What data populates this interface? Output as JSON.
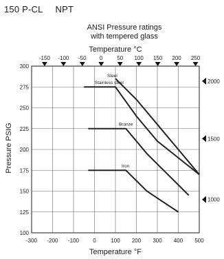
{
  "header": {
    "model": "150 P-CL",
    "connection": "NPT"
  },
  "chart_data": {
    "type": "line",
    "title": "ANSI Pressure ratings",
    "subtitle": "with tempered glass",
    "xlabel": "Temperature °F",
    "x2label": "Temperature °C",
    "ylabel": "Pressure PSIG",
    "xlim": [
      -300,
      500
    ],
    "ylim": [
      100,
      300
    ],
    "x_ticks": [
      -300,
      -200,
      -100,
      0,
      100,
      200,
      300,
      400,
      500
    ],
    "x_tick_labels": [
      "-300",
      "-200",
      "-100",
      "0",
      "100",
      "200",
      "300",
      "400",
      "500"
    ],
    "y_ticks": [
      100,
      125,
      150,
      175,
      200,
      225,
      250,
      275,
      300
    ],
    "y_tick_labels": [
      "100",
      "125",
      "150",
      "175",
      "200",
      "225",
      "250",
      "275",
      "300"
    ],
    "x2_ticks_c": [
      -150,
      -100,
      -50,
      0,
      50,
      100,
      150,
      200,
      250
    ],
    "x2_tick_labels": [
      "-150",
      "-100",
      "-50",
      "0",
      "50",
      "100",
      "150",
      "200",
      "250"
    ],
    "right_marks": [
      {
        "label": "2000",
        "y": 282
      },
      {
        "label": "1500",
        "y": 213
      },
      {
        "label": "1000",
        "y": 140
      }
    ],
    "grid": true,
    "series": [
      {
        "name": "Steel",
        "x": [
          100,
          200,
          300,
          400,
          500
        ],
        "y": [
          285,
          260,
          230,
          200,
          170
        ]
      },
      {
        "name": "Stainless steel",
        "x": [
          -50,
          100,
          200,
          300,
          400,
          500
        ],
        "y": [
          275,
          275,
          240,
          210,
          190,
          170
        ]
      },
      {
        "name": "Bronze",
        "x": [
          -30,
          150,
          250,
          350,
          450
        ],
        "y": [
          225,
          225,
          195,
          170,
          145
        ]
      },
      {
        "name": "Iron",
        "x": [
          -30,
          150,
          250,
          400
        ],
        "y": [
          175,
          175,
          150,
          125
        ]
      }
    ],
    "series_label_at": [
      {
        "name": "Steel",
        "x": 85,
        "y": 285
      },
      {
        "name": "Stainless steel",
        "x": 70,
        "y": 277
      },
      {
        "name": "Bronze",
        "x": 150,
        "y": 227
      },
      {
        "name": "Iron",
        "x": 148,
        "y": 177
      }
    ]
  }
}
